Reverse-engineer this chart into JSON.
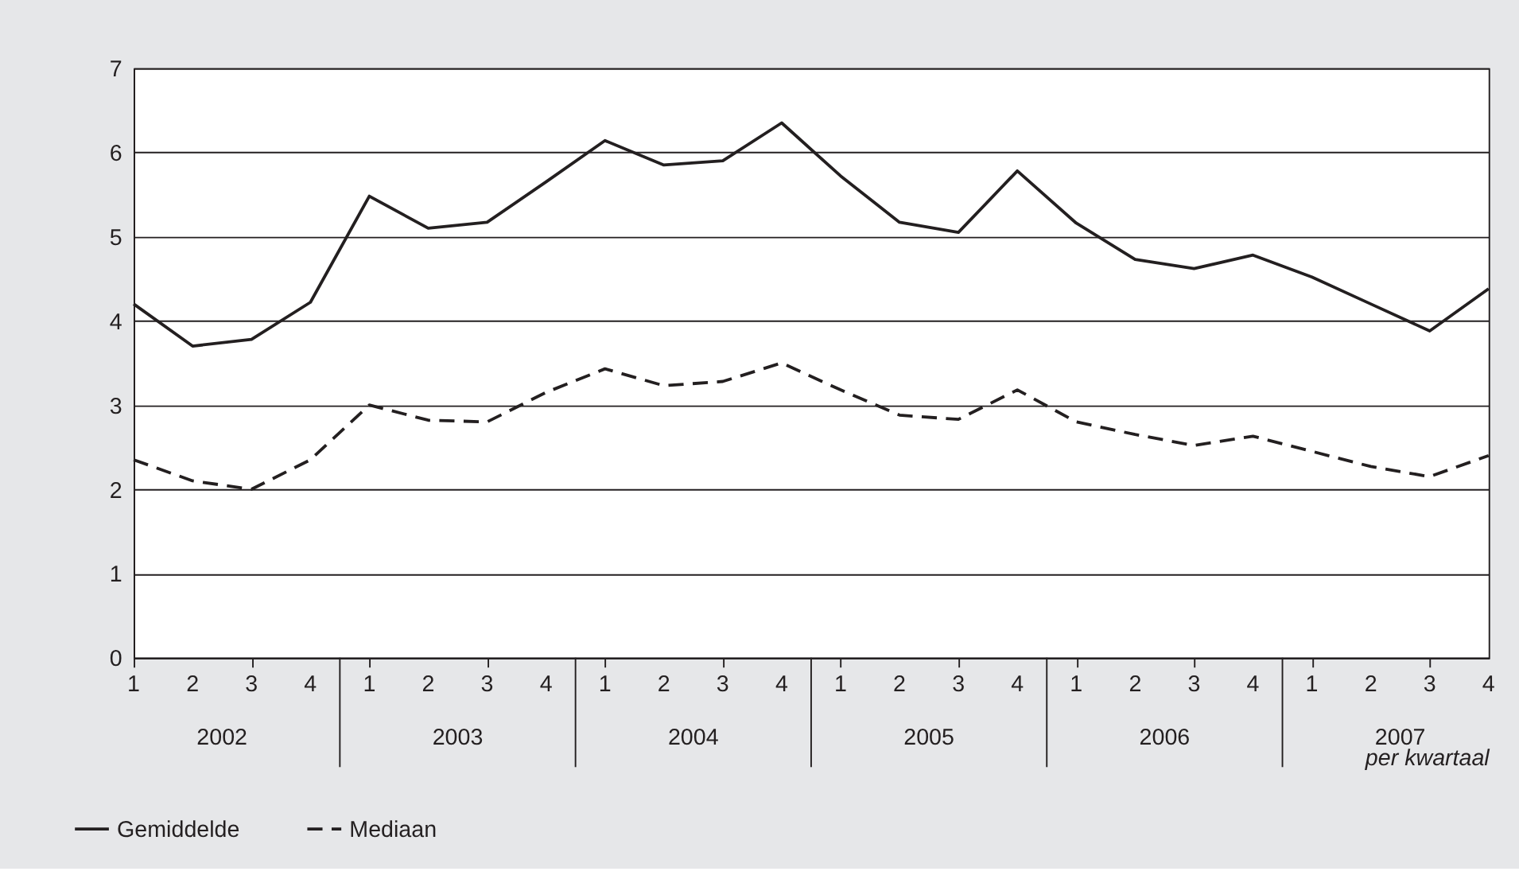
{
  "chart_data": {
    "type": "line",
    "categories": [
      "1",
      "2",
      "3",
      "4",
      "1",
      "2",
      "3",
      "4",
      "1",
      "2",
      "3",
      "4",
      "1",
      "2",
      "3",
      "4",
      "1",
      "2",
      "3",
      "4",
      "1",
      "2",
      "3",
      "4"
    ],
    "series": [
      {
        "name": "Gemiddelde",
        "color": "#231f20",
        "line_style": "solid",
        "values": [
          4.2,
          3.7,
          3.78,
          4.22,
          5.48,
          5.1,
          5.17,
          5.65,
          6.14,
          5.85,
          5.9,
          6.35,
          5.72,
          5.17,
          5.05,
          5.78,
          5.16,
          4.73,
          4.62,
          4.78,
          4.52,
          4.2,
          3.88,
          4.38
        ]
      },
      {
        "name": "Mediaan",
        "color": "#231f20",
        "line_style": "dashed",
        "values": [
          2.35,
          2.1,
          2.0,
          2.35,
          3.0,
          2.82,
          2.8,
          3.15,
          3.43,
          3.23,
          3.28,
          3.5,
          3.18,
          2.88,
          2.83,
          3.18,
          2.8,
          2.65,
          2.52,
          2.63,
          2.45,
          2.27,
          2.15,
          2.4
        ]
      }
    ],
    "annotations": [
      "2002",
      "2003",
      "2004",
      "2005",
      "2006",
      "2007"
    ],
    "xlabel": "per kwartaal",
    "ylim": [
      0,
      7
    ],
    "yticks": [
      0,
      1,
      2,
      3,
      4,
      5,
      6,
      7
    ],
    "grid": "y",
    "legend": "bottom left",
    "marker": "none"
  }
}
